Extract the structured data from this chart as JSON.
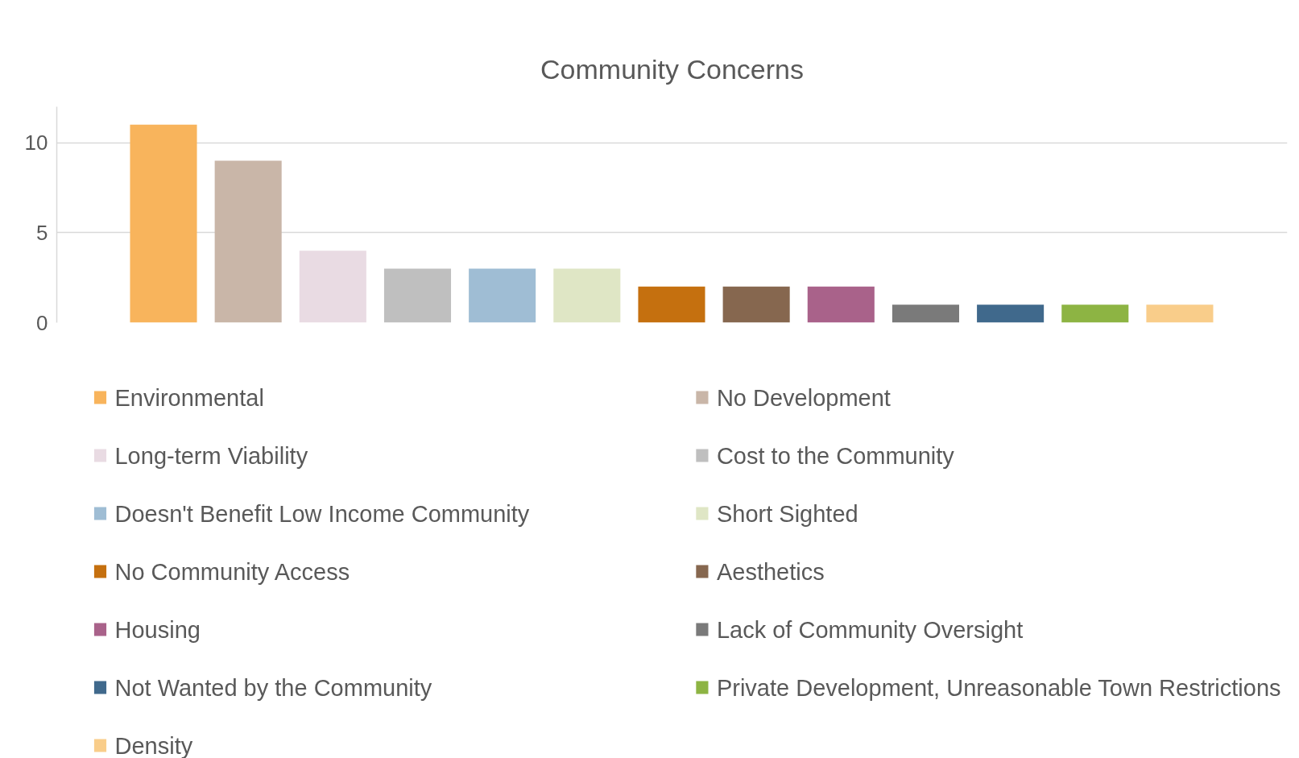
{
  "chart_data": {
    "type": "bar",
    "title": "Community Concerns",
    "categories": [
      null
    ],
    "series": [
      {
        "name": "Environmental",
        "color": "#f8b45c",
        "values": [
          11
        ]
      },
      {
        "name": "No Development",
        "color": "#c9b6a8",
        "values": [
          9
        ]
      },
      {
        "name": "Long-term Viability",
        "color": "#e9dbe3",
        "values": [
          4
        ]
      },
      {
        "name": "Cost to the Community",
        "color": "#bfbfbf",
        "values": [
          3
        ]
      },
      {
        "name": "Doesn't Benefit Low Income Community",
        "color": "#9fbdd4",
        "values": [
          3
        ]
      },
      {
        "name": "Short Sighted",
        "color": "#dfe6c5",
        "values": [
          3
        ]
      },
      {
        "name": "No Community Access",
        "color": "#c5700f",
        "values": [
          2
        ]
      },
      {
        "name": "Aesthetics",
        "color": "#86674f",
        "values": [
          2
        ]
      },
      {
        "name": "Housing",
        "color": "#a9628a",
        "values": [
          2
        ]
      },
      {
        "name": "Lack of Community Oversight",
        "color": "#7a7a7a",
        "values": [
          1
        ]
      },
      {
        "name": "Not Wanted by the Community",
        "color": "#40698c",
        "values": [
          1
        ]
      },
      {
        "name": "Private Development, Unreasonable Town Restrictions",
        "color": "#8db443",
        "values": [
          1
        ]
      },
      {
        "name": "Density",
        "color": "#f9cd8a",
        "values": [
          1
        ]
      }
    ],
    "ylim": [
      0,
      12
    ],
    "yticks": [
      0,
      5,
      10
    ],
    "grid": "y",
    "legend": "bottom",
    "tick_labels": "y"
  }
}
